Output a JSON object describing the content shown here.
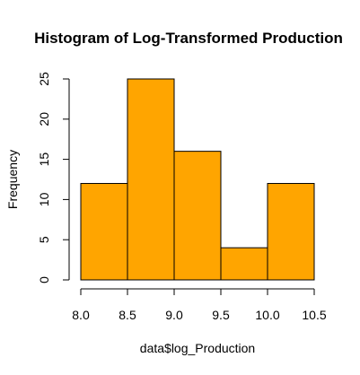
{
  "chart_data": {
    "type": "bar",
    "subtype": "histogram",
    "title": "Histogram of Log-Transformed Production",
    "xlabel": "data$log_Production",
    "ylabel": "Frequency",
    "bins": [
      {
        "from": 8.0,
        "to": 8.5,
        "count": 12
      },
      {
        "from": 8.5,
        "to": 9.0,
        "count": 25
      },
      {
        "from": 9.0,
        "to": 9.5,
        "count": 16
      },
      {
        "from": 9.5,
        "to": 10.0,
        "count": 4
      },
      {
        "from": 10.0,
        "to": 10.5,
        "count": 12
      }
    ],
    "x_ticks": [
      "8.0",
      "8.5",
      "9.0",
      "9.5",
      "10.0",
      "10.5"
    ],
    "y_ticks": [
      "0",
      "5",
      "10",
      "15",
      "20",
      "25"
    ],
    "xlim": [
      8.0,
      10.5
    ],
    "ylim": [
      0,
      25
    ],
    "grid": false,
    "bar_color": "#FFA500",
    "bar_edge_color": "#000000"
  }
}
